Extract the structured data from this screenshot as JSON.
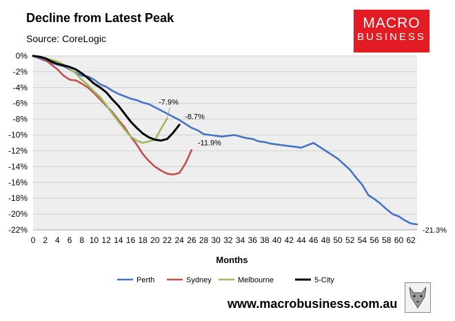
{
  "header": {
    "title": "Decline from Latest Peak",
    "subtitle": "Source: CoreLogic"
  },
  "logo": {
    "line1": "MACRO",
    "line2": "BUSINESS",
    "bg_color": "#e31b23"
  },
  "footer": {
    "website": "www.macrobusiness.com.au",
    "wolf_icon": "wolf-head-icon"
  },
  "chart_data": {
    "type": "line",
    "title": "Decline from Latest Peak",
    "subtitle": "Source: CoreLogic",
    "xlabel": "Months",
    "ylabel": "",
    "xlim": [
      0,
      63
    ],
    "ylim": [
      -22,
      0
    ],
    "x_ticks": [
      0,
      2,
      4,
      6,
      8,
      10,
      12,
      14,
      16,
      18,
      20,
      22,
      24,
      26,
      28,
      30,
      32,
      34,
      36,
      38,
      40,
      42,
      44,
      46,
      48,
      50,
      52,
      54,
      56,
      58,
      60,
      62
    ],
    "y_ticks": [
      0,
      -2,
      -4,
      -6,
      -8,
      -10,
      -12,
      -14,
      -16,
      -18,
      -20,
      -22
    ],
    "y_tick_labels": [
      "0%",
      "-2%",
      "-4%",
      "-6%",
      "-8%",
      "-10%",
      "-12%",
      "-14%",
      "-16%",
      "-18%",
      "-20%",
      "-22%"
    ],
    "grid": "horizontal",
    "legend_position": "bottom",
    "series": [
      {
        "name": "Perth",
        "color": "#4472c4",
        "x": [
          0,
          1,
          2,
          3,
          4,
          5,
          6,
          7,
          8,
          9,
          10,
          11,
          12,
          13,
          14,
          15,
          16,
          17,
          18,
          19,
          20,
          21,
          22,
          23,
          24,
          25,
          26,
          27,
          28,
          29,
          30,
          31,
          32,
          33,
          34,
          35,
          36,
          37,
          38,
          39,
          40,
          41,
          42,
          43,
          44,
          45,
          46,
          47,
          48,
          49,
          50,
          51,
          52,
          53,
          54,
          55,
          56,
          57,
          58,
          59,
          60,
          61,
          62,
          63
        ],
        "y": [
          0,
          -0.3,
          -0.6,
          -0.9,
          -1.1,
          -1.3,
          -1.7,
          -2.1,
          -2.5,
          -2.6,
          -3.0,
          -3.6,
          -3.9,
          -4.4,
          -4.8,
          -5.1,
          -5.4,
          -5.6,
          -5.9,
          -6.1,
          -6.5,
          -6.9,
          -7.3,
          -7.7,
          -8.1,
          -8.6,
          -9.1,
          -9.4,
          -9.9,
          -10.0,
          -10.1,
          -10.2,
          -10.1,
          -10.0,
          -10.2,
          -10.4,
          -10.5,
          -10.8,
          -10.9,
          -11.1,
          -11.2,
          -11.3,
          -11.4,
          -11.5,
          -11.6,
          -11.3,
          -11.0,
          -11.5,
          -12.0,
          -12.5,
          -13.0,
          -13.7,
          -14.4,
          -15.4,
          -16.3,
          -17.6,
          -18.1,
          -18.7,
          -19.4,
          -20.0,
          -20.3,
          -20.8,
          -21.2,
          -21.3
        ],
        "end_label": "-21.3%"
      },
      {
        "name": "Sydney",
        "color": "#c0504d",
        "x": [
          0,
          1,
          2,
          3,
          4,
          5,
          6,
          7,
          8,
          9,
          10,
          11,
          12,
          13,
          14,
          15,
          16,
          17,
          18,
          19,
          20,
          21,
          22,
          23,
          24,
          25,
          26
        ],
        "y": [
          0,
          -0.2,
          -0.5,
          -1.1,
          -1.7,
          -2.5,
          -3.0,
          -3.1,
          -3.5,
          -4.0,
          -4.7,
          -5.5,
          -6.3,
          -7.1,
          -8.1,
          -9.0,
          -10.2,
          -11.2,
          -12.4,
          -13.3,
          -14.0,
          -14.5,
          -14.9,
          -15.0,
          -14.8,
          -13.6,
          -11.9
        ],
        "end_label": "-11.9%"
      },
      {
        "name": "Melbourne",
        "color": "#9bbb59",
        "x": [
          0,
          1,
          2,
          3,
          4,
          5,
          6,
          7,
          8,
          9,
          10,
          11,
          12,
          13,
          14,
          15,
          16,
          17,
          18,
          19,
          20,
          21,
          22
        ],
        "y": [
          0,
          -0.1,
          -0.3,
          -0.5,
          -0.7,
          -1.1,
          -1.6,
          -2.2,
          -3.0,
          -3.7,
          -4.5,
          -5.2,
          -6.2,
          -7.3,
          -8.3,
          -9.3,
          -10.2,
          -10.7,
          -11.0,
          -10.8,
          -10.6,
          -9.2,
          -7.9
        ],
        "end_label": "-7.9%"
      },
      {
        "name": "5-City",
        "color": "#000000",
        "x": [
          0,
          1,
          2,
          3,
          4,
          5,
          6,
          7,
          8,
          9,
          10,
          11,
          12,
          13,
          14,
          15,
          16,
          17,
          18,
          19,
          20,
          21,
          22,
          23,
          24
        ],
        "y": [
          0,
          -0.1,
          -0.3,
          -0.7,
          -1.0,
          -1.2,
          -1.4,
          -1.7,
          -2.2,
          -2.8,
          -3.5,
          -4.0,
          -4.6,
          -5.5,
          -6.3,
          -7.3,
          -8.3,
          -9.1,
          -9.8,
          -10.3,
          -10.6,
          -10.7,
          -10.5,
          -9.7,
          -8.7
        ],
        "end_label": "-8.7%"
      }
    ]
  }
}
